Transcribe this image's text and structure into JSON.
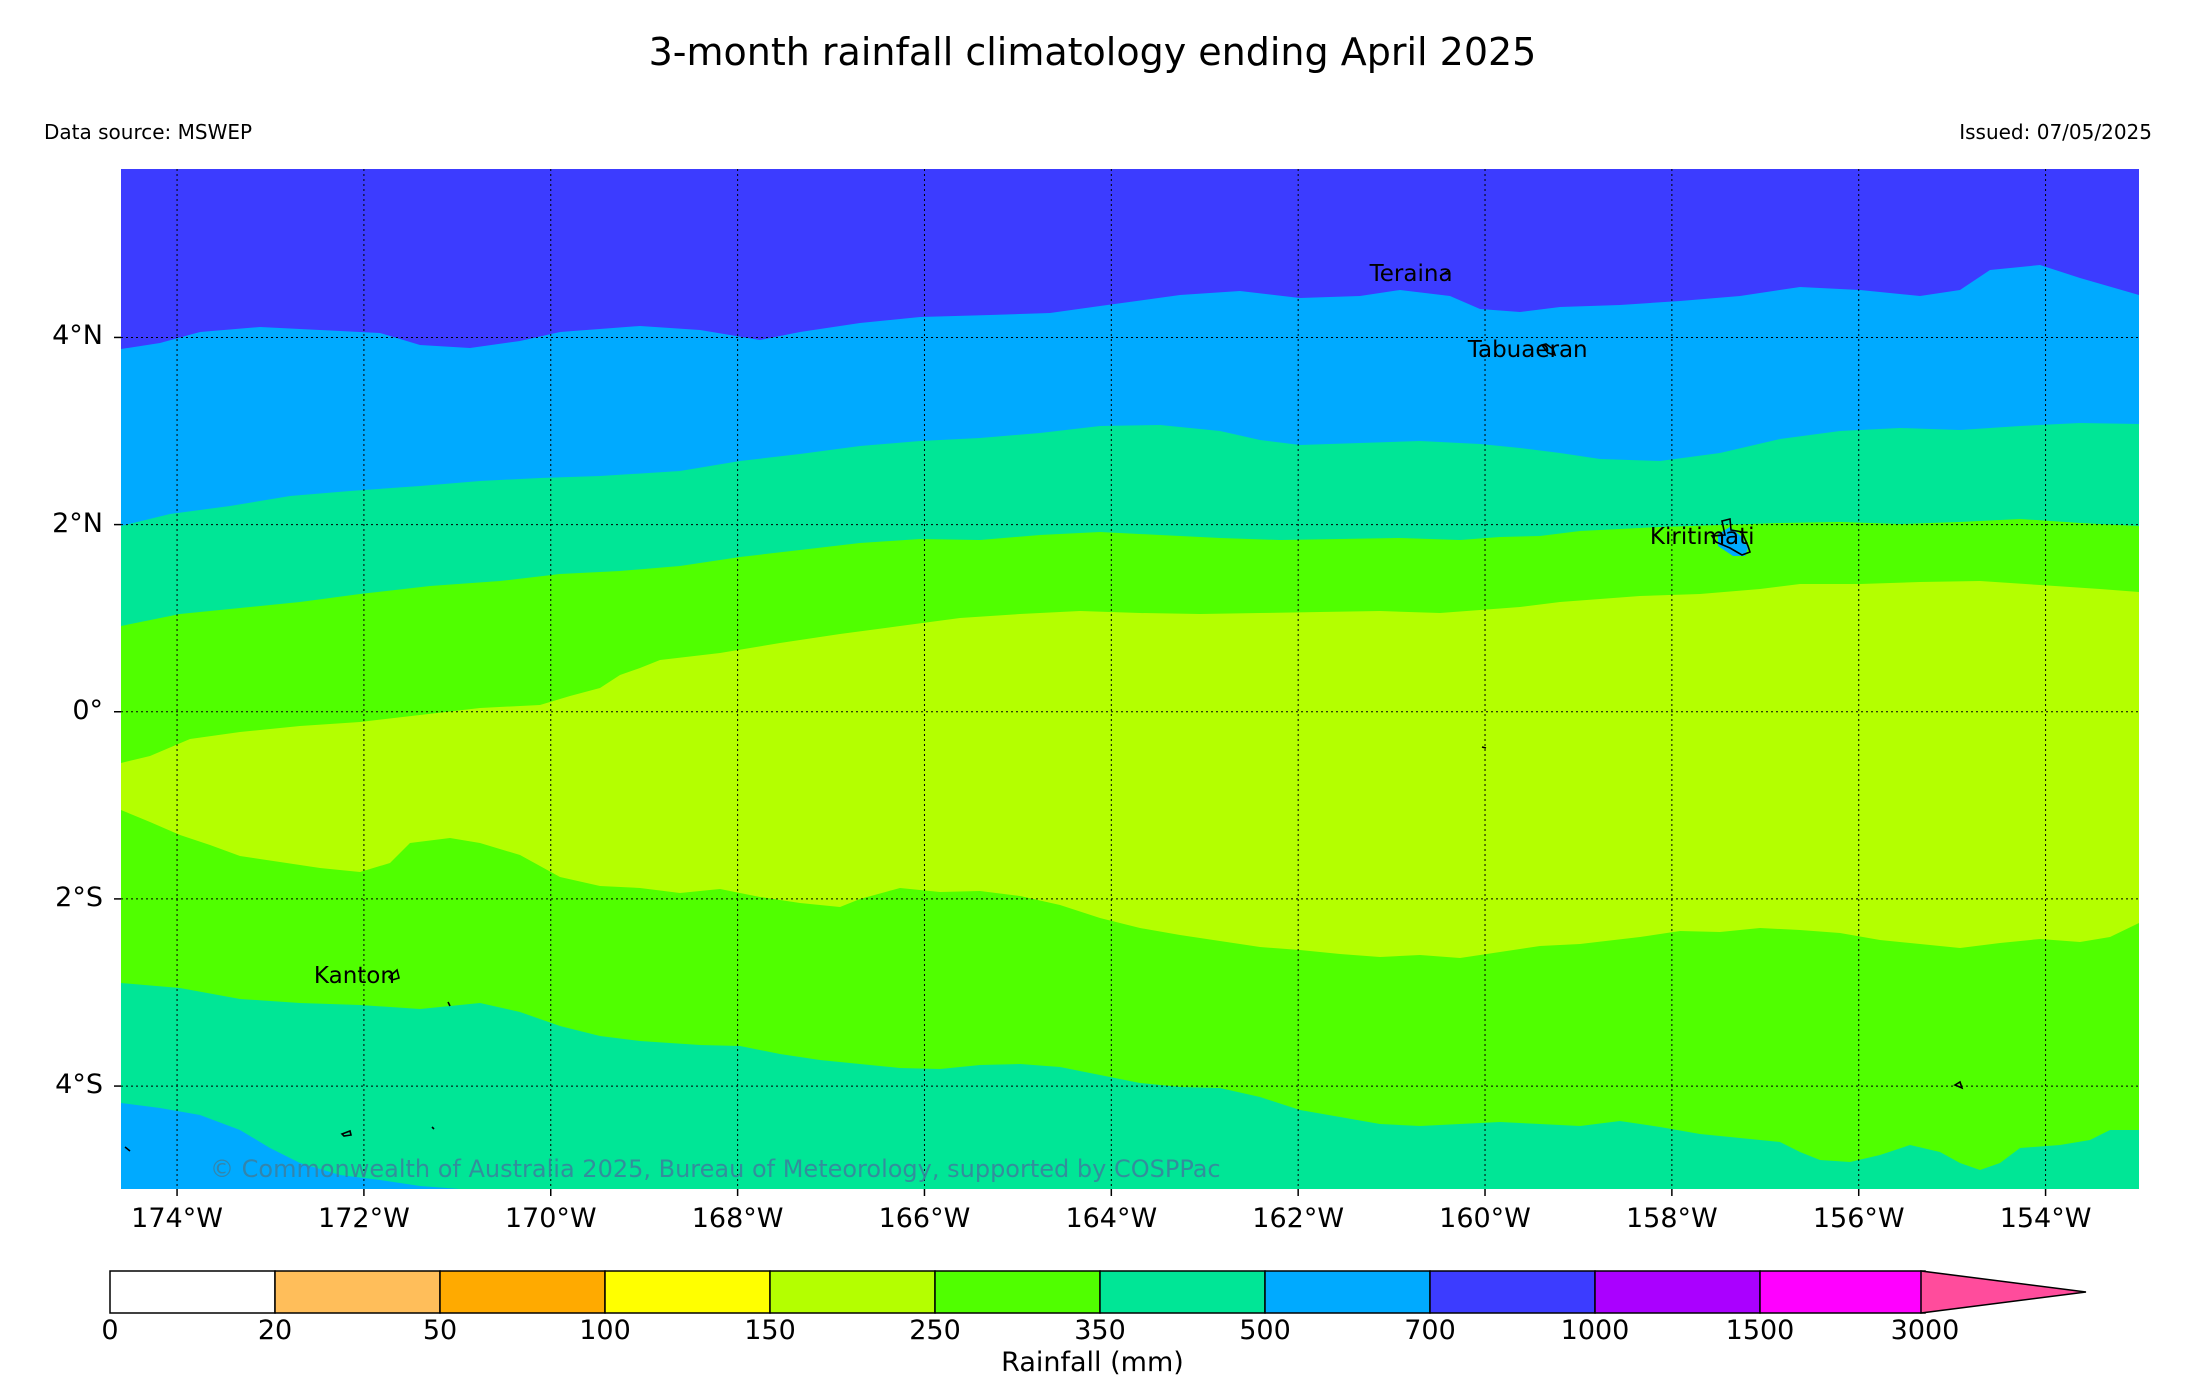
{
  "title": "3-month rainfall climatology ending April 2025",
  "data_source": "Data source: MSWEP",
  "issued": "Issued: 07/05/2025",
  "copyright": "© Commonwealth of Australia 2025, Bureau of Meteorology, supported by COSPPac",
  "map": {
    "lon_range": [
      -174.6,
      -153.0
    ],
    "lat_range": [
      -5.1,
      5.8
    ],
    "lon_ticks": [
      {
        "value": -174,
        "label": "174°W"
      },
      {
        "value": -172,
        "label": "172°W"
      },
      {
        "value": -170,
        "label": "170°W"
      },
      {
        "value": -168,
        "label": "168°W"
      },
      {
        "value": -166,
        "label": "166°W"
      },
      {
        "value": -164,
        "label": "164°W"
      },
      {
        "value": -162,
        "label": "162°W"
      },
      {
        "value": -160,
        "label": "160°W"
      },
      {
        "value": -158,
        "label": "158°W"
      },
      {
        "value": -156,
        "label": "156°W"
      },
      {
        "value": -154,
        "label": "154°W"
      }
    ],
    "lat_ticks": [
      {
        "value": 4,
        "label": "4°N"
      },
      {
        "value": 2,
        "label": "2°N"
      },
      {
        "value": 0,
        "label": "0°"
      },
      {
        "value": -2,
        "label": "2°S"
      },
      {
        "value": -4,
        "label": "4°S"
      }
    ],
    "grid": true,
    "places": [
      {
        "name": "Teraina",
        "lon": -160.4,
        "lat": 4.68
      },
      {
        "name": "Tabuaeran",
        "lon": -159.35,
        "lat": 3.87
      },
      {
        "name": "Kiritimati",
        "lon": -157.4,
        "lat": 1.87
      },
      {
        "name": "Kanton",
        "lon": -171.7,
        "lat": -2.82
      }
    ]
  },
  "colorbar": {
    "label": "Rainfall (mm)",
    "ticks": [
      "0",
      "20",
      "50",
      "100",
      "150",
      "250",
      "350",
      "500",
      "700",
      "1000",
      "1500",
      "3000"
    ],
    "colors": [
      "#ffffff",
      "#ffbe5a",
      "#ffaa00",
      "#ffff00",
      "#b4ff00",
      "#50ff00",
      "#00e696",
      "#00aaff",
      "#3c3cff",
      "#aa00ff",
      "#ff00ff"
    ],
    "extend_color": "#ff4c9c"
  },
  "rainfall_colors": {
    "700-1000": "#3c3cff",
    "500-700": "#00aaff",
    "350-500": "#00e696",
    "250-350": "#50ff00",
    "150-250": "#b4ff00"
  }
}
